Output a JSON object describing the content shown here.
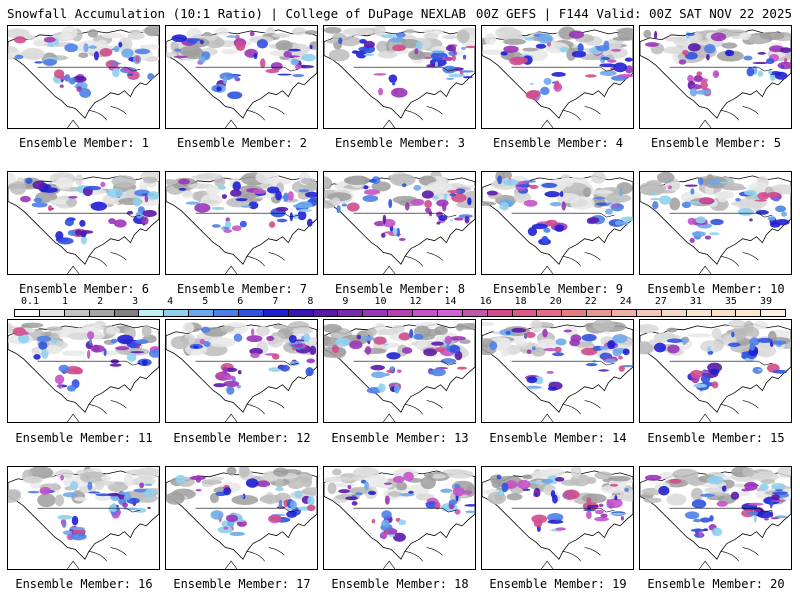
{
  "header": {
    "left_title": "Snowfall Accumulation (10:1 Ratio) | College of DuPage NEXLAB",
    "right_title": "00Z GEFS | F144 Valid: 00Z SAT NOV 22 2025"
  },
  "member_label_prefix": "Ensemble Member: ",
  "members": [
    "1",
    "2",
    "3",
    "4",
    "5",
    "6",
    "7",
    "8",
    "9",
    "10",
    "11",
    "12",
    "13",
    "14",
    "15",
    "16",
    "17",
    "18",
    "19",
    "20"
  ],
  "colorbar": {
    "labels": [
      "0.1",
      "1",
      "2",
      "3",
      "4",
      "5",
      "6",
      "7",
      "8",
      "9",
      "10",
      "12",
      "14",
      "16",
      "18",
      "20",
      "22",
      "24",
      "27",
      "31",
      "35",
      "39"
    ],
    "colors": [
      "#ffffff",
      "#e4e4e4",
      "#c4c4c4",
      "#a4a4a4",
      "#808080",
      "#bff2f2",
      "#8fd0ee",
      "#6ea8ea",
      "#4c7fe6",
      "#2f52e0",
      "#1f1fd4",
      "#3a14b8",
      "#5a1aa8",
      "#7a28b0",
      "#9a34b8",
      "#b442b4",
      "#c452c8",
      "#d062d2",
      "#c05aa8",
      "#d24c8c",
      "#dc5a88",
      "#e46a8a",
      "#e27e7e",
      "#e89890",
      "#eeb0a4",
      "#f2c6b8",
      "#f6d8c8",
      "#f8e6d4",
      "#fae0c4",
      "#fce8d0",
      "#fdf2e2"
    ]
  }
}
